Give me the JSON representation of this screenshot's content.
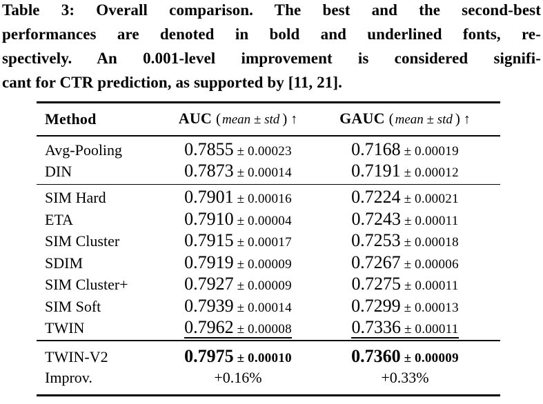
{
  "caption": {
    "lines": [
      "Table 3: Overall comparison. The best and the second-best",
      "performances are denoted in bold and underlined fonts, re-",
      "spectively. An 0.001-level improvement is considered signifi-",
      "cant for CTR prediction, as supported by [11, 21]."
    ]
  },
  "table": {
    "pm": "±",
    "header": {
      "method": "Method",
      "auc": {
        "name": "AUC",
        "open": "(",
        "detail": "mean ± std",
        "close": ")",
        "arrow": "↑"
      },
      "gauc": {
        "name": "GAUC",
        "open": "(",
        "detail": "mean ± std",
        "close": ")",
        "arrow": "↑"
      }
    },
    "sections": [
      {
        "rows": [
          {
            "method": "Avg-Pooling",
            "auc_mean": "0.7855",
            "auc_std": "0.00023",
            "gauc_mean": "0.7168",
            "gauc_std": "0.00019"
          },
          {
            "method": "DIN",
            "auc_mean": "0.7873",
            "auc_std": "0.00014",
            "gauc_mean": "0.7191",
            "gauc_std": "0.00012"
          }
        ]
      },
      {
        "rows": [
          {
            "method": "SIM Hard",
            "auc_mean": "0.7901",
            "auc_std": "0.00016",
            "gauc_mean": "0.7224",
            "gauc_std": "0.00021"
          },
          {
            "method": "ETA",
            "auc_mean": "0.7910",
            "auc_std": "0.00004",
            "gauc_mean": "0.7243",
            "gauc_std": "0.00011"
          },
          {
            "method": "SIM Cluster",
            "auc_mean": "0.7915",
            "auc_std": "0.00017",
            "gauc_mean": "0.7253",
            "gauc_std": "0.00018"
          },
          {
            "method": "SDIM",
            "auc_mean": "0.7919",
            "auc_std": "0.00009",
            "gauc_mean": "0.7267",
            "gauc_std": "0.00006"
          },
          {
            "method": "SIM Cluster+",
            "auc_mean": "0.7927",
            "auc_std": "0.00009",
            "gauc_mean": "0.7275",
            "gauc_std": "0.00011"
          },
          {
            "method": "SIM Soft",
            "auc_mean": "0.7939",
            "auc_std": "0.00014",
            "gauc_mean": "0.7299",
            "gauc_std": "0.00013"
          },
          {
            "method": "TWIN",
            "auc_mean": "0.7962",
            "auc_std": "0.00008",
            "gauc_mean": "0.7336",
            "gauc_std": "0.00011",
            "emphasis": "underline"
          }
        ]
      },
      {
        "rows": [
          {
            "method": "TWIN-V2",
            "auc_mean": "0.7975",
            "auc_std": "0.00010",
            "gauc_mean": "0.7360",
            "gauc_std": "0.00009",
            "emphasis": "bold"
          },
          {
            "method": "Improv.",
            "auc_text": "+0.16%",
            "gauc_text": "+0.33%"
          }
        ]
      }
    ]
  }
}
